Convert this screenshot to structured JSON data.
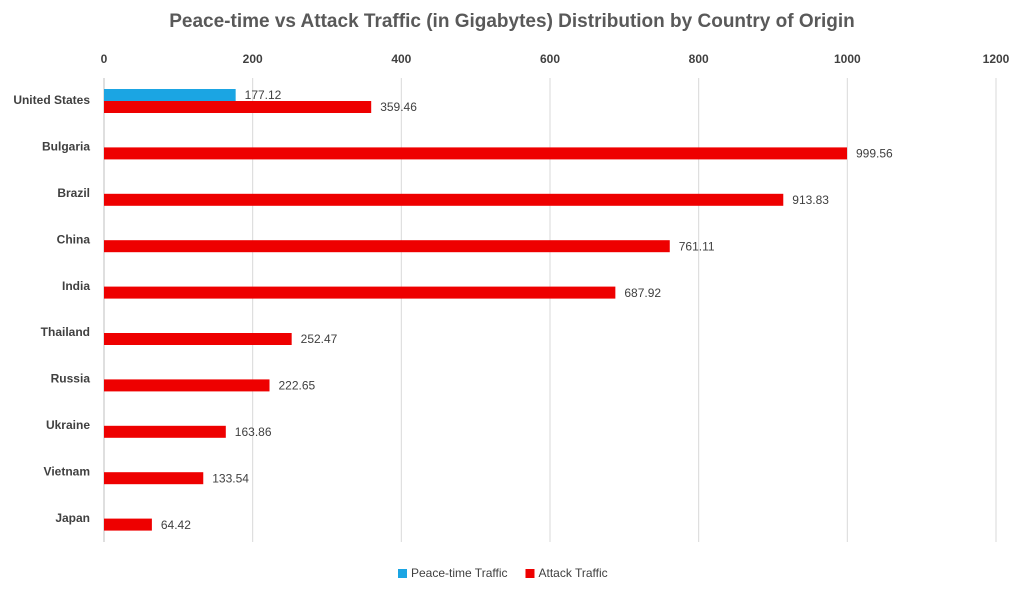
{
  "chart_data": {
    "type": "hbar",
    "title": "Peace-time vs Attack Traffic (in Gigabytes) Distribution by Country of Origin",
    "categories": [
      "United States",
      "Bulgaria",
      "Brazil",
      "China",
      "India",
      "Thailand",
      "Russia",
      "Ukraine",
      "Vietnam",
      "Japan"
    ],
    "series": [
      {
        "name": "Peace-time Traffic",
        "color": "#1ba5e3",
        "values": [
          177.12,
          null,
          null,
          null,
          null,
          null,
          null,
          null,
          null,
          null
        ]
      },
      {
        "name": "Attack Traffic",
        "color": "#ee0000",
        "values": [
          359.46,
          999.56,
          913.83,
          761.11,
          687.92,
          252.47,
          222.65,
          163.86,
          133.54,
          64.42
        ]
      }
    ],
    "xlim": [
      0,
      1200
    ],
    "xticks": [
      0,
      200,
      400,
      600,
      800,
      1000,
      1200
    ],
    "grid": true,
    "legend": "bottom"
  }
}
